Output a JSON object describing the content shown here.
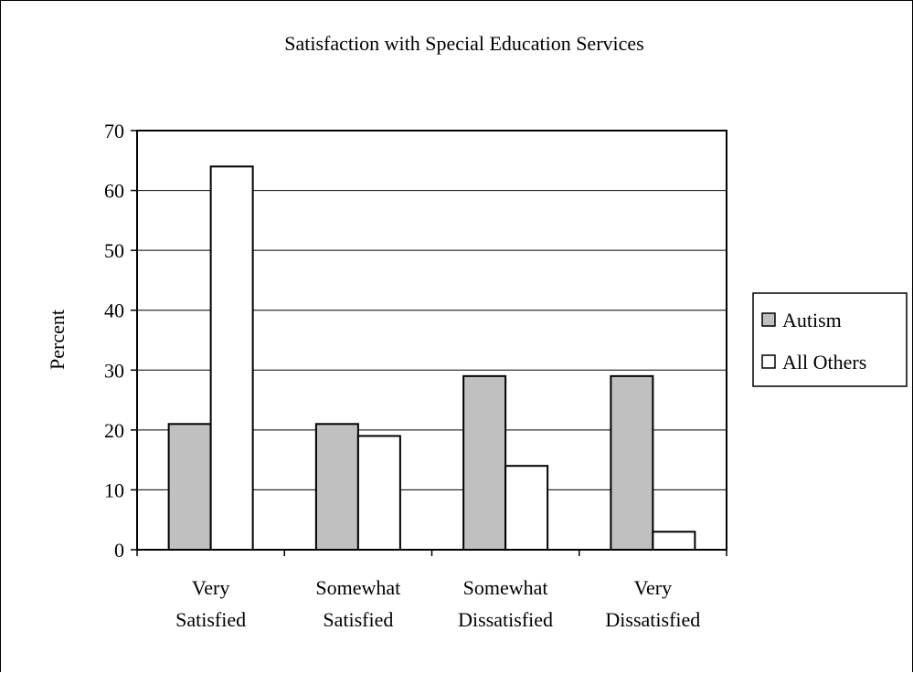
{
  "chart_data": {
    "type": "bar",
    "title": "Satisfaction with Special Education Services",
    "xlabel": "",
    "ylabel": "Percent",
    "ylim": [
      0,
      70
    ],
    "yticks": [
      0,
      10,
      20,
      30,
      40,
      50,
      60,
      70
    ],
    "grid": true,
    "legend_position": "right",
    "categories": [
      [
        "Very",
        "Satisfied"
      ],
      [
        "Somewhat",
        "Satisfied"
      ],
      [
        "Somewhat",
        "Dissatisfied"
      ],
      [
        "Very",
        "Dissatisfied"
      ]
    ],
    "series": [
      {
        "name": "Autism",
        "color": "#c0c0c0",
        "values": [
          21,
          21,
          29,
          29
        ]
      },
      {
        "name": "All Others",
        "color": "#ffffff",
        "values": [
          64,
          19,
          14,
          3
        ]
      }
    ]
  }
}
